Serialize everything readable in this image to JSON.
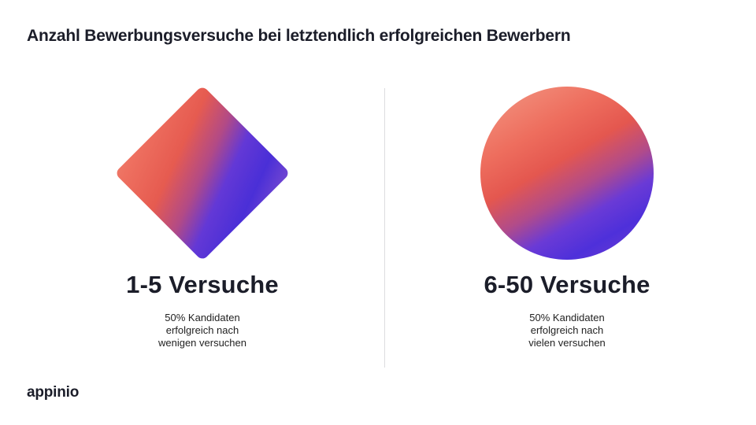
{
  "title": "Anzahl Bewerbungsversuche bei letztendlich erfolgreichen Bewerbern",
  "panels": [
    {
      "shape": "diamond",
      "heading": "1-5 Versuche",
      "lines": [
        "50% Kandidaten",
        "erfolgreich nach",
        "wenigen versuchen"
      ]
    },
    {
      "shape": "circle",
      "heading": "6-50 Versuche",
      "lines": [
        "50% Kandidaten",
        "erfolgreich nach",
        "vielen versuchen"
      ]
    }
  ],
  "logo": "appinio",
  "colors": {
    "text": "#1b1d29",
    "gradient_coral": "#ee7060",
    "gradient_violet": "#4a2fd7",
    "divider": "#dcdcdf"
  }
}
